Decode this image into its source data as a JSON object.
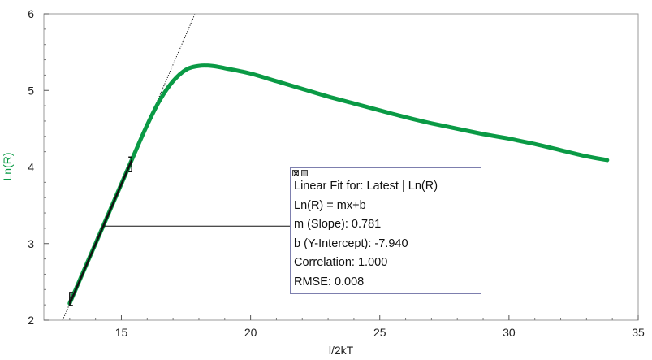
{
  "chart_data": {
    "type": "line",
    "xlabel": "l/2kT",
    "ylabel": "Ln(R)",
    "xlim": [
      12,
      35
    ],
    "ylim": [
      2,
      6
    ],
    "xticks": [
      "15",
      "20",
      "25",
      "30",
      "35"
    ],
    "yticks": [
      "2",
      "3",
      "4",
      "5",
      "6"
    ],
    "grid": false,
    "series": [
      {
        "color": "#0a9a45",
        "x": [
          13.0,
          13.5,
          14.0,
          14.5,
          15.0,
          15.5,
          16.0,
          16.5,
          17.0,
          17.5,
          18.0,
          18.5,
          19.0,
          20.0,
          21.0,
          22.0,
          23.0,
          24.0,
          25.0,
          26.0,
          27.0,
          28.0,
          29.0,
          30.0,
          31.0,
          32.0,
          33.0,
          33.8
        ],
        "y": [
          2.22,
          2.61,
          3.0,
          3.39,
          3.78,
          4.17,
          4.55,
          4.88,
          5.12,
          5.27,
          5.32,
          5.32,
          5.29,
          5.22,
          5.12,
          5.02,
          4.92,
          4.83,
          4.74,
          4.65,
          4.57,
          4.5,
          4.43,
          4.37,
          4.3,
          4.22,
          4.14,
          4.09
        ]
      }
    ],
    "fit": {
      "color": "#111111",
      "slope": 0.781,
      "intercept": -7.94,
      "range": [
        13.0,
        15.4
      ]
    }
  },
  "fit_box": {
    "title": "Linear Fit for: Latest | Ln(R)",
    "equation": "Ln(R) = mx+b",
    "slope": "m (Slope): 0.781",
    "intercept": "b (Y-Intercept): -7.940",
    "correlation": "Correlation: 1.000",
    "rmse": "RMSE: 0.008"
  }
}
